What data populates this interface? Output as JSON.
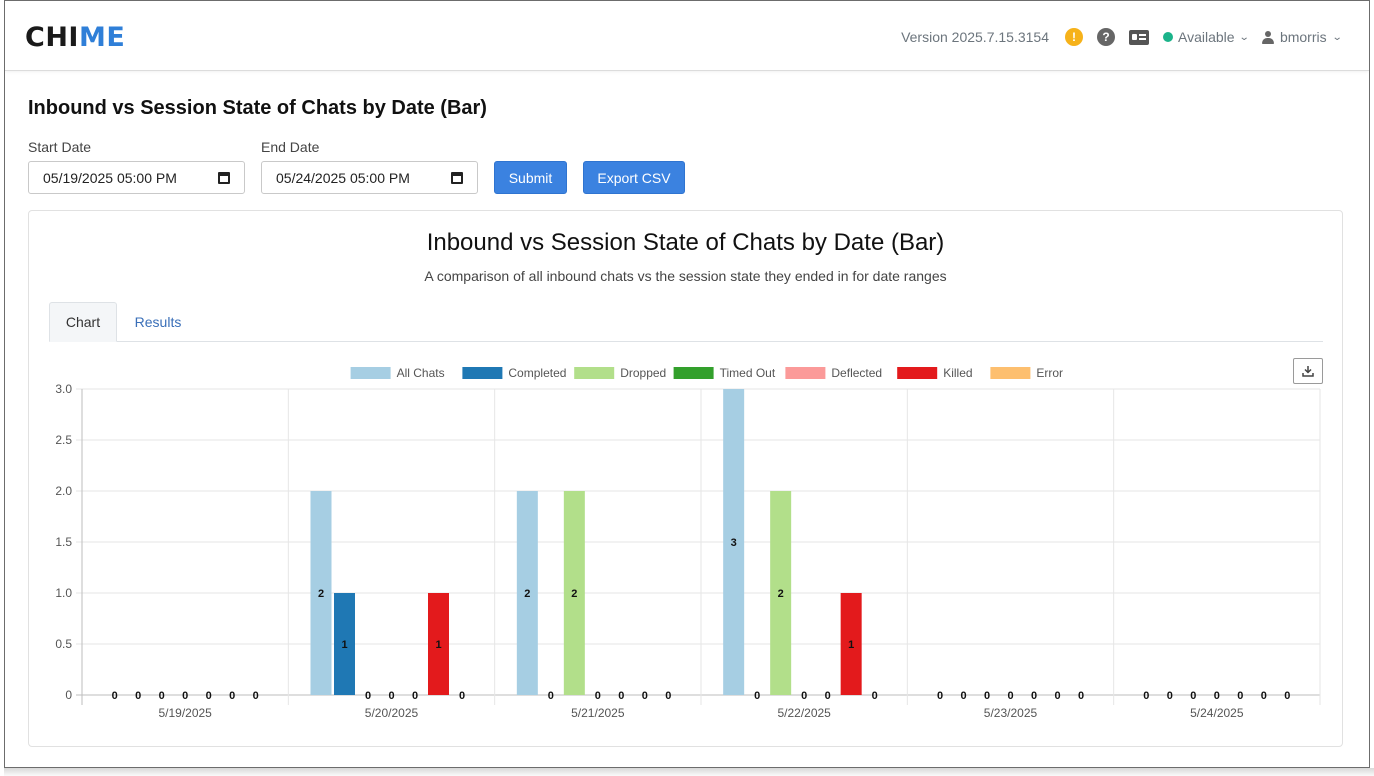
{
  "app": {
    "logo_part1": "CHI",
    "logo_part2": "ME",
    "version": "Version 2025.7.15.3154",
    "warn_symbol": "!",
    "help_symbol": "?",
    "status": "Available",
    "username": "bmorris"
  },
  "page": {
    "title": "Inbound vs Session State of Chats by Date (Bar)"
  },
  "form": {
    "start_label": "Start Date",
    "start_value": "05/19/2025 05:00  PM",
    "end_label": "End Date",
    "end_value": "05/24/2025 05:00  PM",
    "submit_label": "Submit",
    "export_label": "Export CSV"
  },
  "panel": {
    "title": "Inbound vs Session State of Chats by Date (Bar)",
    "subtitle": "A comparison of all inbound chats vs the session state they ended in for date ranges",
    "tabs": [
      {
        "label": "Chart"
      },
      {
        "label": "Results"
      }
    ]
  },
  "colors": {
    "accent": "#3b82e0",
    "series": [
      "#a6cee3",
      "#1f78b4",
      "#b2df8a",
      "#33a02c",
      "#fb9a99",
      "#e31a1c",
      "#fdbf6f"
    ]
  },
  "chart_data": {
    "type": "bar",
    "title": "",
    "xlabel": "",
    "ylabel": "",
    "ylim": [
      0,
      3
    ],
    "yticks": [
      "0",
      "0.5",
      "1.0",
      "1.5",
      "2.0",
      "2.5",
      "3.0"
    ],
    "grid": true,
    "legend_position": "top-center",
    "categories": [
      "5/19/2025",
      "5/20/2025",
      "5/21/2025",
      "5/22/2025",
      "5/23/2025",
      "5/24/2025"
    ],
    "series": [
      {
        "name": "All Chats",
        "values": [
          0,
          2,
          2,
          3,
          0,
          0
        ]
      },
      {
        "name": "Completed",
        "values": [
          0,
          1,
          0,
          0,
          0,
          0
        ]
      },
      {
        "name": "Dropped",
        "values": [
          0,
          0,
          2,
          2,
          0,
          0
        ]
      },
      {
        "name": "Timed Out",
        "values": [
          0,
          0,
          0,
          0,
          0,
          0
        ]
      },
      {
        "name": "Deflected",
        "values": [
          0,
          0,
          0,
          0,
          0,
          0
        ]
      },
      {
        "name": "Killed",
        "values": [
          0,
          1,
          0,
          1,
          0,
          0
        ]
      },
      {
        "name": "Error",
        "values": [
          0,
          0,
          0,
          0,
          0,
          0
        ]
      }
    ]
  }
}
